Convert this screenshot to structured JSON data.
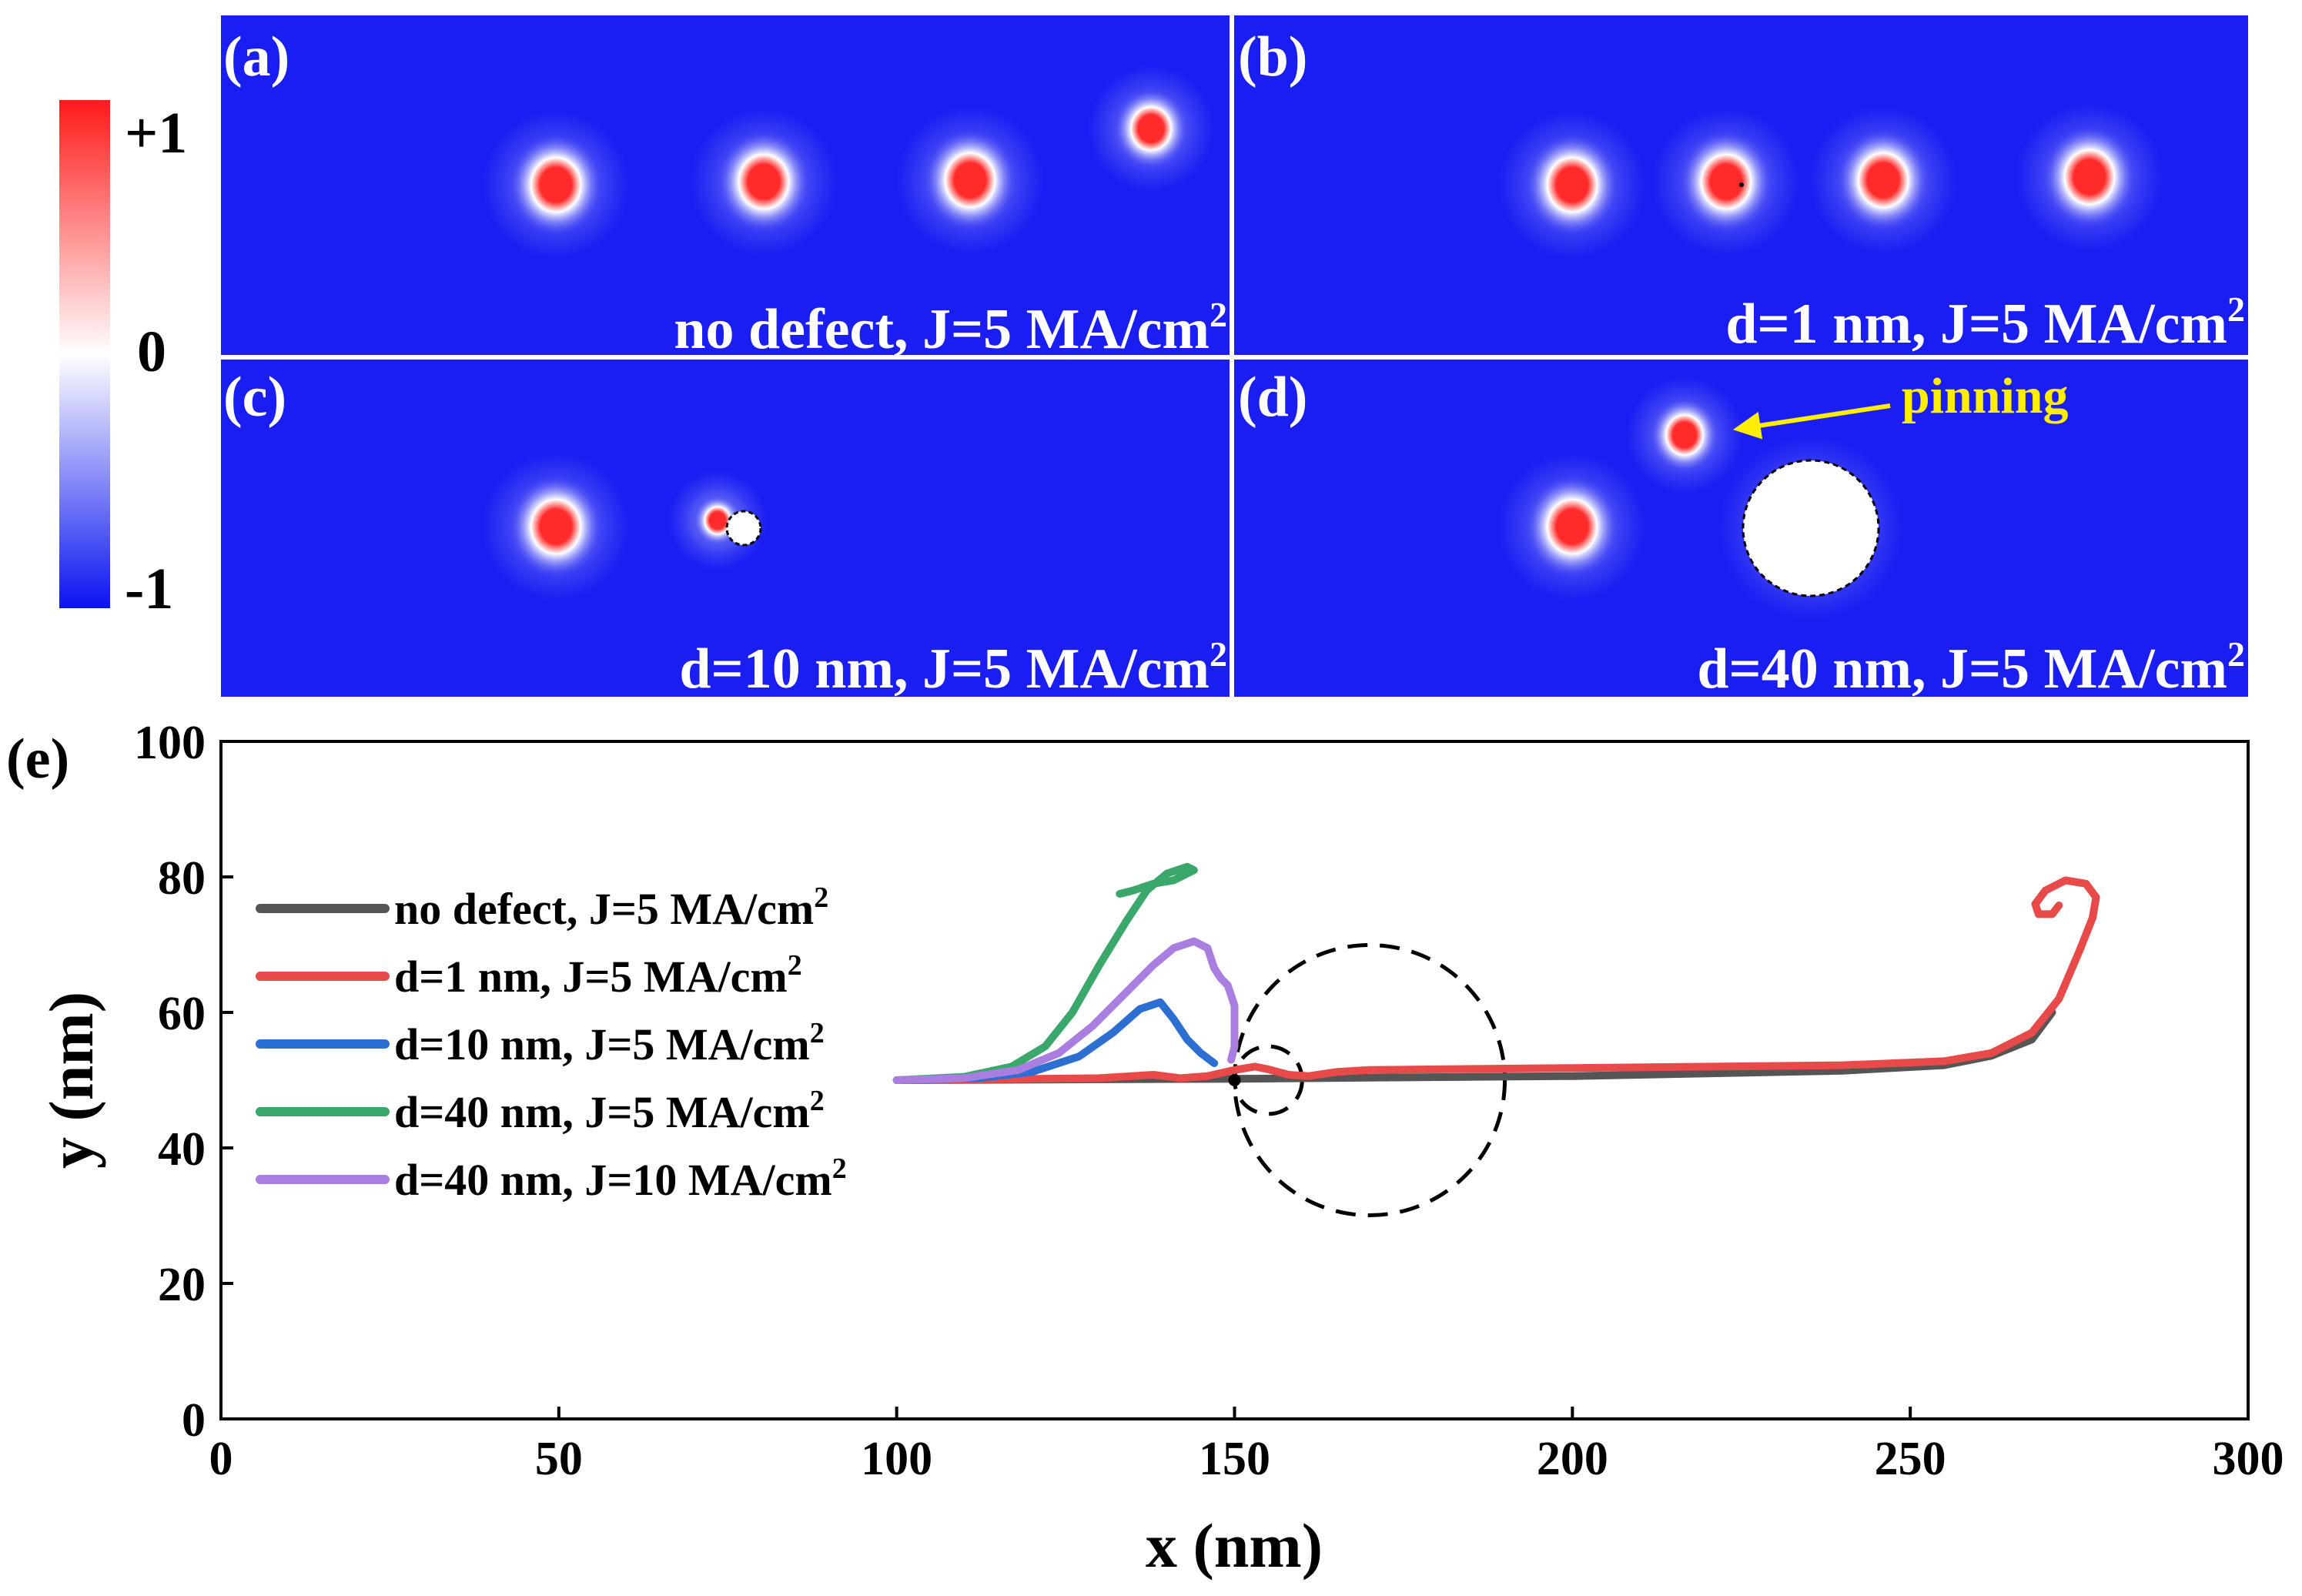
{
  "colorbar": {
    "max_label": "+1",
    "mid_label": "0",
    "min_label": "-1"
  },
  "colors": {
    "panel_bg": "#1a1ef2",
    "skyrmion_core": "#ff2a2a",
    "cbar_top": "#ff1a1a",
    "cbar_mid": "#ffffff",
    "cbar_bottom": "#0a14f0",
    "pinning_arrow": "#ffee00",
    "divider": "#ffffff"
  },
  "panels": [
    {
      "id": "a",
      "tag": "(a)",
      "caption": "no defect, J=5 MA/cm",
      "sup": "2"
    },
    {
      "id": "b",
      "tag": "(b)",
      "caption": "d=1 nm, J=5 MA/cm",
      "sup": "2"
    },
    {
      "id": "c",
      "tag": "(c)",
      "caption": "d=10 nm, J=5 MA/cm",
      "sup": "2"
    },
    {
      "id": "d",
      "tag": "(d)",
      "caption": "d=40 nm, J=5 MA/cm",
      "sup": "2",
      "annotation": "pinning"
    }
  ],
  "chart_data": {
    "type": "line",
    "panel_tag": "(e)",
    "xlabel": "x (nm)",
    "ylabel": "y (nm)",
    "xlim": [
      0,
      300
    ],
    "ylim": [
      0,
      100
    ],
    "xticks": [
      0,
      50,
      100,
      150,
      200,
      250,
      300
    ],
    "yticks": [
      0,
      20,
      40,
      60,
      80,
      100
    ],
    "defects": [
      {
        "label": "defect d=10 nm",
        "cx": 155,
        "cy": 50,
        "d": 10
      },
      {
        "label": "defect d=40 nm",
        "cx": 170,
        "cy": 50,
        "d": 40
      }
    ],
    "series": [
      {
        "name": "no defect, J=5 MA/cm",
        "sup": "2",
        "color": "#555555",
        "points": [
          [
            100,
            50
          ],
          [
            150,
            50.2
          ],
          [
            200,
            50.6
          ],
          [
            240,
            51.4
          ],
          [
            255,
            52.2
          ],
          [
            262,
            53.6
          ],
          [
            268,
            56
          ],
          [
            271,
            60
          ]
        ]
      },
      {
        "name": "d=1 nm, J=5 MA/cm",
        "sup": "2",
        "color": "#e84a4a",
        "points": [
          [
            100,
            50
          ],
          [
            130,
            50.3
          ],
          [
            138,
            50.8
          ],
          [
            142,
            50.3
          ],
          [
            146,
            50.6
          ],
          [
            150,
            51.5
          ],
          [
            153,
            52
          ],
          [
            155,
            51.6
          ],
          [
            158,
            50.8
          ],
          [
            161,
            50.6
          ],
          [
            165,
            51.2
          ],
          [
            170,
            51.5
          ],
          [
            200,
            51.8
          ],
          [
            240,
            52.2
          ],
          [
            255,
            52.8
          ],
          [
            262,
            54
          ],
          [
            268,
            57
          ],
          [
            272,
            62
          ],
          [
            275,
            69
          ],
          [
            277,
            74
          ],
          [
            277.5,
            77
          ],
          [
            276,
            79
          ],
          [
            273,
            79.5
          ],
          [
            270,
            78
          ],
          [
            268.5,
            76
          ],
          [
            269,
            74.5
          ],
          [
            271,
            74.5
          ],
          [
            272,
            75.8
          ]
        ]
      },
      {
        "name": "d=10 nm, J=5 MA/cm",
        "sup": "2",
        "color": "#2a6fd1",
        "points": [
          [
            100,
            50
          ],
          [
            112,
            50.3
          ],
          [
            120,
            51.2
          ],
          [
            127,
            53.5
          ],
          [
            132,
            57
          ],
          [
            136,
            60.5
          ],
          [
            139,
            61.5
          ],
          [
            141,
            59
          ],
          [
            143,
            56
          ],
          [
            145,
            54
          ],
          [
            147,
            52.5
          ]
        ]
      },
      {
        "name": "d=40 nm, J=5 MA/cm",
        "sup": "2",
        "color": "#3aa86b",
        "points": [
          [
            100,
            50
          ],
          [
            110,
            50.5
          ],
          [
            117,
            52
          ],
          [
            122,
            55
          ],
          [
            126,
            60
          ],
          [
            130,
            67
          ],
          [
            134,
            73.5
          ],
          [
            137,
            78
          ],
          [
            140,
            80.5
          ],
          [
            143,
            81.5
          ],
          [
            144,
            81
          ],
          [
            141,
            79.5
          ],
          [
            138,
            79
          ],
          [
            135,
            78
          ],
          [
            133,
            77.5
          ]
        ]
      },
      {
        "name": "d=40 nm, J=10 MA/cm",
        "sup": "2",
        "color": "#a97ee0",
        "points": [
          [
            100,
            50
          ],
          [
            110,
            50.3
          ],
          [
            118,
            51.5
          ],
          [
            124,
            54
          ],
          [
            129,
            58
          ],
          [
            134,
            63
          ],
          [
            138,
            67
          ],
          [
            141,
            69.5
          ],
          [
            144,
            70.5
          ],
          [
            146,
            69.5
          ],
          [
            147,
            66.5
          ],
          [
            148,
            65
          ],
          [
            149,
            64
          ],
          [
            150,
            61
          ],
          [
            150,
            58
          ],
          [
            150,
            55
          ],
          [
            149.5,
            53
          ]
        ]
      }
    ]
  }
}
